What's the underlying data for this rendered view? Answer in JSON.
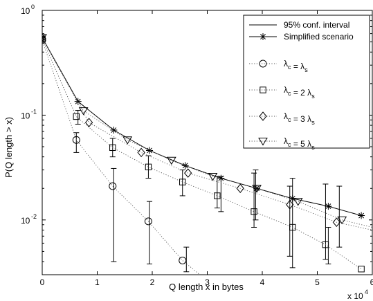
{
  "chart_data": {
    "type": "line",
    "xlabel": "Q length x in bytes",
    "ylabel": "P(Q length > x)",
    "x_multiplier_label": "x 10",
    "x_multiplier_exp": "4",
    "xscale": "linear",
    "yscale": "log",
    "xlim": [
      0,
      6
    ],
    "ylim": [
      0.003,
      1
    ],
    "x_ticks": [
      0,
      1,
      2,
      3,
      4,
      5,
      6
    ],
    "x_tick_labels": [
      "0",
      "1",
      "2",
      "3",
      "4",
      "5",
      "6"
    ],
    "y_ticks": [
      1,
      0.1,
      0.01
    ],
    "y_tick_labels": [
      {
        "base": "10",
        "exp": "0"
      },
      {
        "base": "10",
        "exp": "-1"
      },
      {
        "base": "10",
        "exp": "-2"
      }
    ],
    "grid": false,
    "legend_position": "top-right",
    "conf_interval": {
      "name": "95% conf. interval",
      "bars": [
        {
          "x": 0.62,
          "lo": 0.044,
          "hi": 0.068
        },
        {
          "x": 0.65,
          "lo": 0.082,
          "hi": 0.111
        },
        {
          "x": 1.28,
          "lo": 0.04,
          "hi": 0.06
        },
        {
          "x": 1.3,
          "lo": 0.004,
          "hi": 0.031
        },
        {
          "x": 1.93,
          "lo": 0.025,
          "hi": 0.041
        },
        {
          "x": 1.95,
          "lo": 0.0038,
          "hi": 0.015
        },
        {
          "x": 2.55,
          "lo": 0.017,
          "hi": 0.03
        },
        {
          "x": 2.62,
          "lo": 0.0032,
          "hi": 0.0055
        },
        {
          "x": 3.18,
          "lo": 0.013,
          "hi": 0.026
        },
        {
          "x": 3.25,
          "lo": 0.012,
          "hi": 0.026
        },
        {
          "x": 3.85,
          "lo": 0.0085,
          "hi": 0.028
        },
        {
          "x": 3.88,
          "lo": 0.01,
          "hi": 0.03
        },
        {
          "x": 4.5,
          "lo": 0.0045,
          "hi": 0.021
        },
        {
          "x": 4.55,
          "lo": 0.0035,
          "hi": 0.025
        },
        {
          "x": 5.15,
          "lo": 0.0042,
          "hi": 0.022
        },
        {
          "x": 5.2,
          "lo": 0.0038,
          "hi": 0.0085
        },
        {
          "x": 5.4,
          "lo": 0.0055,
          "hi": 0.021
        }
      ]
    },
    "series": [
      {
        "name": "Simplified scenario",
        "marker": "star",
        "line": "solid",
        "x": [
          0,
          0.65,
          1.3,
          1.95,
          2.6,
          3.25,
          3.9,
          4.55,
          5.2,
          5.8
        ],
        "values": [
          0.55,
          0.135,
          0.072,
          0.046,
          0.033,
          0.025,
          0.02,
          0.016,
          0.0135,
          0.011
        ]
      },
      {
        "name": "λc = λs",
        "name_parts": {
          "lhs": "λ",
          "lhs_sub": "c",
          "mid": " = ",
          "coef": "",
          "rhs": "λ",
          "rhs_sub": "s"
        },
        "marker": "circle",
        "line": "dotted",
        "x": [
          0,
          0.62,
          1.28,
          1.93,
          2.55,
          3.05
        ],
        "values": [
          0.52,
          0.058,
          0.021,
          0.0097,
          0.0041,
          0.0025
        ]
      },
      {
        "name": "λc = 2 λs",
        "name_parts": {
          "lhs": "λ",
          "lhs_sub": "c",
          "mid": " = ",
          "coef": "2 ",
          "rhs": "λ",
          "rhs_sub": "s"
        },
        "marker": "square",
        "line": "dotted",
        "x": [
          0,
          0.62,
          1.28,
          1.93,
          2.55,
          3.18,
          3.85,
          4.55,
          5.15,
          5.8
        ],
        "values": [
          0.53,
          0.097,
          0.049,
          0.032,
          0.023,
          0.017,
          0.012,
          0.0085,
          0.0058,
          0.0034
        ]
      },
      {
        "name": "λc = 3 λs",
        "name_parts": {
          "lhs": "λ",
          "lhs_sub": "c",
          "mid": " = ",
          "coef": "3 ",
          "rhs": "λ",
          "rhs_sub": "s"
        },
        "marker": "diamond",
        "line": "dotted",
        "x": [
          0,
          0.85,
          1.8,
          2.65,
          3.6,
          4.5,
          5.35,
          6.0
        ],
        "values": [
          0.54,
          0.085,
          0.044,
          0.028,
          0.02,
          0.014,
          0.0095,
          0.008
        ]
      },
      {
        "name": "λc = 5 λs",
        "name_parts": {
          "lhs": "λ",
          "lhs_sub": "c",
          "mid": " = ",
          "coef": "5 ",
          "rhs": "λ",
          "rhs_sub": "s"
        },
        "marker": "triangle-down",
        "line": "dotted",
        "x": [
          0,
          0.75,
          1.55,
          2.35,
          3.1,
          3.9,
          4.65,
          5.45,
          6.0
        ],
        "values": [
          0.55,
          0.11,
          0.058,
          0.037,
          0.026,
          0.02,
          0.015,
          0.01,
          0.0085
        ]
      }
    ]
  }
}
